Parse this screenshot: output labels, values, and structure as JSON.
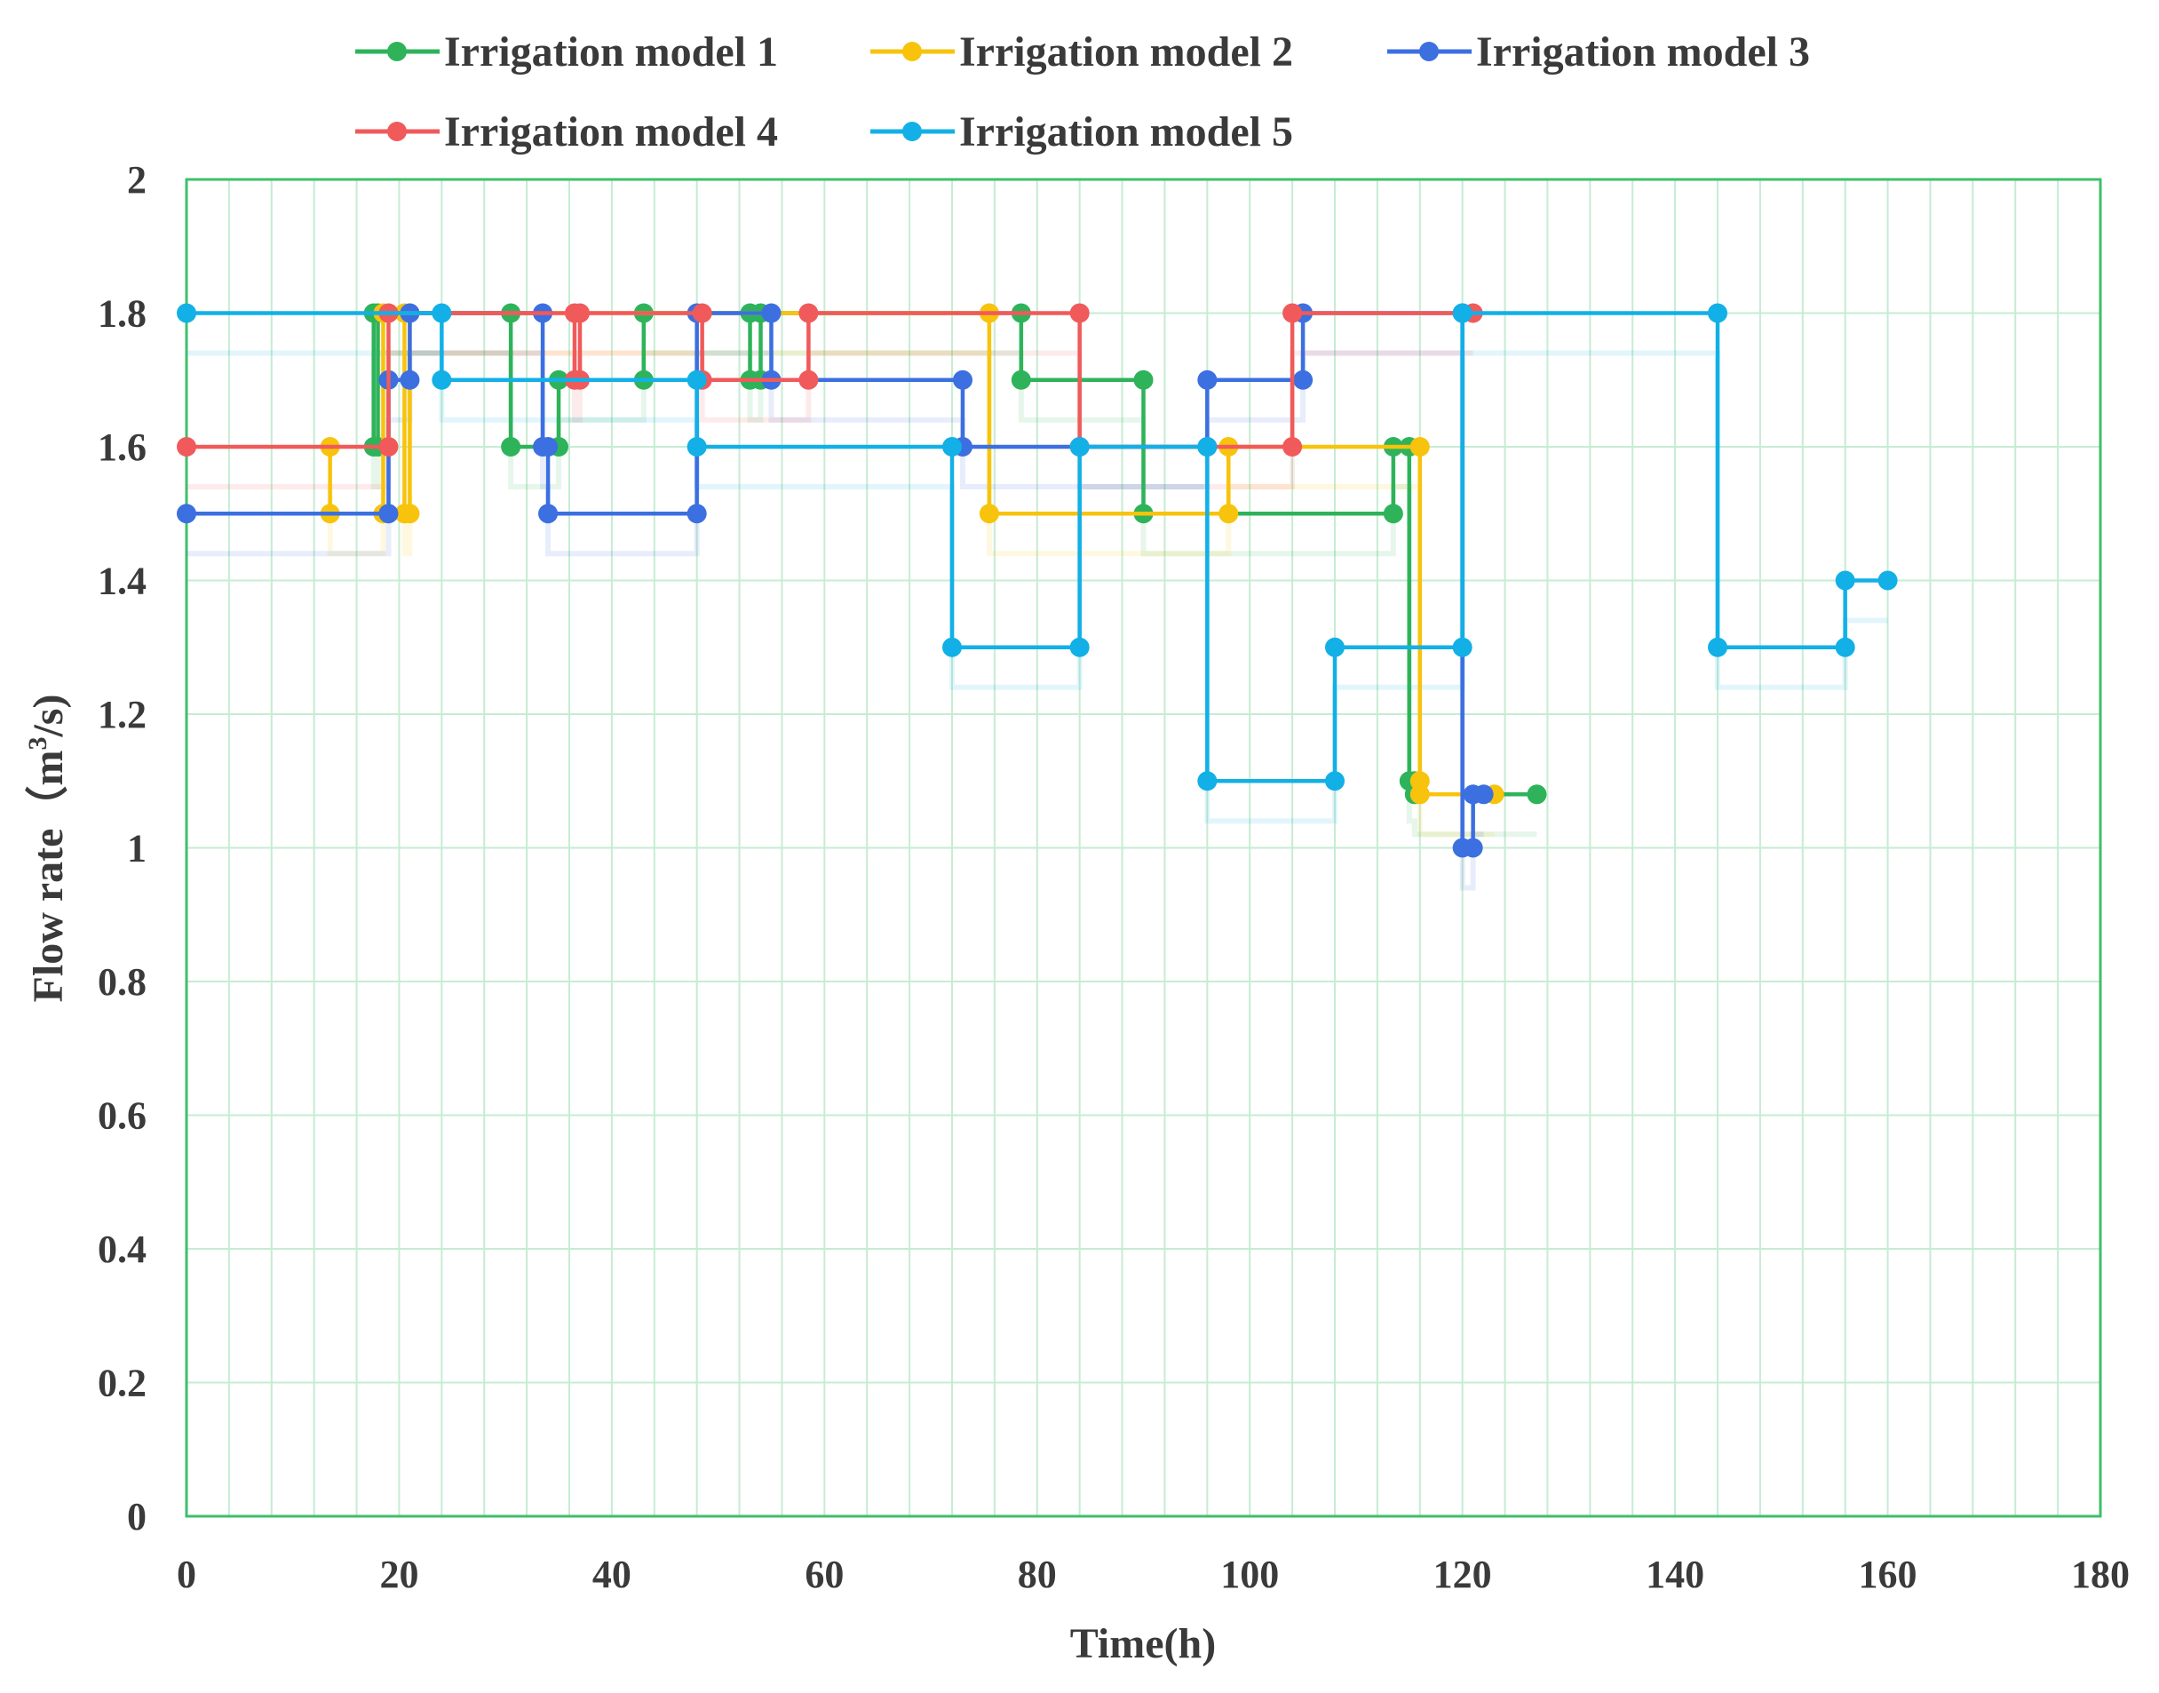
{
  "chart_data": {
    "type": "line",
    "step": true,
    "title": "",
    "xlabel": "Time(h)",
    "ylabel_main": "Flow rate（m",
    "ylabel_sup": "3",
    "ylabel_end": "/s)",
    "xlim": [
      0,
      180
    ],
    "ylim": [
      0,
      2
    ],
    "x_ticks": [
      0,
      20,
      40,
      60,
      80,
      100,
      120,
      140,
      160,
      180
    ],
    "x_tick_labels": [
      "0",
      "20",
      "40",
      "60",
      "80",
      "100",
      "120",
      "140",
      "160",
      "180"
    ],
    "y_ticks": [
      0,
      0.2,
      0.4,
      0.6,
      0.8,
      1,
      1.2,
      1.4,
      1.6,
      1.8,
      2
    ],
    "y_tick_labels": [
      "0",
      "0.2",
      "0.4",
      "0.6",
      "0.8",
      "1",
      "1.2",
      "1.4",
      "1.6",
      "1.8",
      "2"
    ],
    "x_minor_step": 4,
    "grid": true,
    "legend_position": "top",
    "series": [
      {
        "name": "Irrigation model 1",
        "color": "#2eb35a",
        "points": [
          [
            17.6,
            1.8
          ],
          [
            17.6,
            1.6
          ],
          [
            18,
            1.6
          ],
          [
            18,
            1.8
          ],
          [
            30.5,
            1.8
          ],
          [
            30.5,
            1.6
          ],
          [
            35,
            1.6
          ],
          [
            35,
            1.7
          ],
          [
            43,
            1.7
          ],
          [
            43,
            1.8
          ],
          [
            53,
            1.8
          ],
          [
            53,
            1.7
          ],
          [
            54,
            1.7
          ],
          [
            54,
            1.8
          ],
          [
            78.5,
            1.8
          ],
          [
            78.5,
            1.7
          ],
          [
            90,
            1.7
          ],
          [
            90,
            1.5
          ],
          [
            113.5,
            1.5
          ],
          [
            113.5,
            1.6
          ],
          [
            115,
            1.6
          ],
          [
            115,
            1.1
          ],
          [
            115.5,
            1.1
          ],
          [
            115.5,
            1.08
          ],
          [
            127,
            1.08
          ]
        ]
      },
      {
        "name": "Irrigation model 2",
        "color": "#f7c30c",
        "points": [
          [
            13.5,
            1.6
          ],
          [
            13.5,
            1.5
          ],
          [
            18.5,
            1.5
          ],
          [
            18.5,
            1.8
          ],
          [
            20.5,
            1.8
          ],
          [
            20.5,
            1.5
          ],
          [
            21,
            1.5
          ],
          [
            21,
            1.8
          ],
          [
            75.5,
            1.8
          ],
          [
            75.5,
            1.5
          ],
          [
            98,
            1.5
          ],
          [
            98,
            1.6
          ],
          [
            116,
            1.6
          ],
          [
            116,
            1.1
          ],
          [
            116,
            1.08
          ],
          [
            123,
            1.08
          ]
        ]
      },
      {
        "name": "Irrigation model 3",
        "color": "#3c6fe0",
        "points": [
          [
            0,
            1.5
          ],
          [
            19,
            1.5
          ],
          [
            19,
            1.7
          ],
          [
            21,
            1.7
          ],
          [
            21,
            1.8
          ],
          [
            33.5,
            1.8
          ],
          [
            33.5,
            1.6
          ],
          [
            34,
            1.6
          ],
          [
            34,
            1.5
          ],
          [
            48,
            1.5
          ],
          [
            48,
            1.8
          ],
          [
            55,
            1.8
          ],
          [
            55,
            1.7
          ],
          [
            73,
            1.7
          ],
          [
            73,
            1.6
          ],
          [
            96,
            1.6
          ],
          [
            96,
            1.7
          ],
          [
            105,
            1.7
          ],
          [
            105,
            1.8
          ],
          [
            120,
            1.8
          ],
          [
            120,
            1
          ],
          [
            121,
            1
          ],
          [
            121,
            1.08
          ],
          [
            122,
            1.08
          ]
        ]
      },
      {
        "name": "Irrigation model 4",
        "color": "#f05a5a",
        "points": [
          [
            0,
            1.6
          ],
          [
            19,
            1.6
          ],
          [
            19,
            1.8
          ],
          [
            36.5,
            1.8
          ],
          [
            36.5,
            1.7
          ],
          [
            37,
            1.7
          ],
          [
            37,
            1.8
          ],
          [
            48.5,
            1.8
          ],
          [
            48.5,
            1.7
          ],
          [
            58.5,
            1.7
          ],
          [
            58.5,
            1.8
          ],
          [
            84,
            1.8
          ],
          [
            84,
            1.6
          ],
          [
            104,
            1.6
          ],
          [
            104,
            1.8
          ],
          [
            121,
            1.8
          ]
        ]
      },
      {
        "name": "Irrigation model 5",
        "color": "#12b0e6",
        "points": [
          [
            0,
            1.8
          ],
          [
            24,
            1.8
          ],
          [
            24,
            1.7
          ],
          [
            48,
            1.7
          ],
          [
            48,
            1.6
          ],
          [
            72,
            1.6
          ],
          [
            72,
            1.3
          ],
          [
            84,
            1.3
          ],
          [
            84,
            1.6
          ],
          [
            96,
            1.6
          ],
          [
            96,
            1.1
          ],
          [
            108,
            1.1
          ],
          [
            108,
            1.3
          ],
          [
            120,
            1.3
          ],
          [
            120,
            1.8
          ],
          [
            144,
            1.8
          ],
          [
            144,
            1.3
          ],
          [
            156,
            1.3
          ],
          [
            156,
            1.4
          ],
          [
            160,
            1.4
          ]
        ]
      }
    ]
  }
}
